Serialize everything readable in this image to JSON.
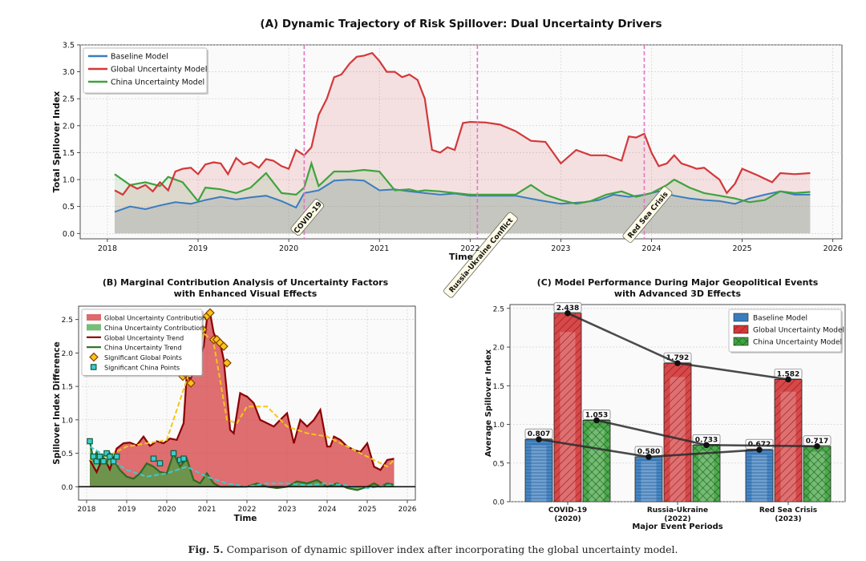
{
  "caption": {
    "label": "Fig. 5.",
    "text": "Comparison of dynamic spillover index after incorporating the global uncertainty model."
  },
  "colors": {
    "baseline": "#3a7dbf",
    "global": "#d3383a",
    "china": "#3fa33f",
    "event_line": "#e377c2",
    "gold": "#f5c518",
    "teal": "#3ecad1",
    "dark_red": "#8b0000",
    "dark_green": "#2e6b1f"
  },
  "chart_data": [
    {
      "id": "A",
      "type": "line",
      "title": "(A) Dynamic Trajectory of Risk Spillover: Dual Uncertainty Drivers",
      "xlabel": "Time",
      "ylabel": "Total Spillover Index",
      "xlim": [
        2017.7,
        2026.1
      ],
      "ylim": [
        -0.1,
        3.5
      ],
      "xticks": [
        2018,
        2019,
        2020,
        2021,
        2022,
        2023,
        2024,
        2025,
        2026
      ],
      "yticks": [
        0.0,
        0.5,
        1.0,
        1.5,
        2.0,
        2.5,
        3.0,
        3.5
      ],
      "grid": true,
      "legend_position": "top-left",
      "events": [
        {
          "x": 2020.17,
          "label": "COVID-19"
        },
        {
          "x": 2022.08,
          "label": "Russia-Ukraine Conflict"
        },
        {
          "x": 2023.92,
          "label": "Red Sea Crisis"
        }
      ],
      "series": [
        {
          "name": "Baseline Model",
          "color_key": "baseline",
          "x": [
            2018.08,
            2018.25,
            2018.42,
            2018.58,
            2018.75,
            2018.92,
            2019.08,
            2019.25,
            2019.42,
            2019.58,
            2019.75,
            2019.92,
            2020.08,
            2020.17,
            2020.33,
            2020.5,
            2020.67,
            2020.83,
            2021.0,
            2021.17,
            2021.33,
            2021.5,
            2021.67,
            2021.83,
            2022.0,
            2022.25,
            2022.5,
            2022.75,
            2023.0,
            2023.25,
            2023.42,
            2023.58,
            2023.75,
            2023.92,
            2024.08,
            2024.25,
            2024.42,
            2024.58,
            2024.75,
            2024.92,
            2025.08,
            2025.25,
            2025.42,
            2025.58,
            2025.75
          ],
          "y": [
            0.4,
            0.5,
            0.45,
            0.52,
            0.58,
            0.55,
            0.62,
            0.68,
            0.63,
            0.67,
            0.7,
            0.6,
            0.48,
            0.75,
            0.8,
            0.98,
            1.0,
            0.98,
            0.8,
            0.82,
            0.78,
            0.75,
            0.72,
            0.74,
            0.7,
            0.7,
            0.7,
            0.62,
            0.55,
            0.58,
            0.62,
            0.72,
            0.68,
            0.72,
            0.78,
            0.7,
            0.65,
            0.62,
            0.6,
            0.55,
            0.65,
            0.72,
            0.78,
            0.72,
            0.72
          ]
        },
        {
          "name": "Global Uncertainty Model",
          "color_key": "global",
          "x": [
            2018.08,
            2018.17,
            2018.25,
            2018.33,
            2018.42,
            2018.5,
            2018.58,
            2018.67,
            2018.75,
            2018.83,
            2018.92,
            2019.0,
            2019.08,
            2019.17,
            2019.25,
            2019.33,
            2019.42,
            2019.5,
            2019.58,
            2019.67,
            2019.75,
            2019.83,
            2019.92,
            2020.0,
            2020.08,
            2020.17,
            2020.25,
            2020.33,
            2020.42,
            2020.5,
            2020.58,
            2020.67,
            2020.75,
            2020.83,
            2020.92,
            2021.0,
            2021.08,
            2021.17,
            2021.25,
            2021.33,
            2021.42,
            2021.5,
            2021.58,
            2021.67,
            2021.75,
            2021.83,
            2021.92,
            2022.0,
            2022.17,
            2022.33,
            2022.5,
            2022.67,
            2022.83,
            2023.0,
            2023.17,
            2023.33,
            2023.5,
            2023.67,
            2023.75,
            2023.83,
            2023.92,
            2024.0,
            2024.08,
            2024.17,
            2024.25,
            2024.33,
            2024.42,
            2024.5,
            2024.58,
            2024.67,
            2024.75,
            2024.83,
            2024.92,
            2025.0,
            2025.17,
            2025.33,
            2025.42,
            2025.58,
            2025.75
          ],
          "y": [
            0.8,
            0.72,
            0.9,
            0.83,
            0.9,
            0.78,
            0.95,
            0.8,
            1.15,
            1.2,
            1.22,
            1.1,
            1.28,
            1.32,
            1.3,
            1.1,
            1.4,
            1.28,
            1.32,
            1.22,
            1.38,
            1.35,
            1.25,
            1.2,
            1.55,
            1.45,
            1.6,
            2.2,
            2.5,
            2.9,
            2.95,
            3.15,
            3.28,
            3.3,
            3.35,
            3.2,
            3.0,
            3.0,
            2.9,
            2.95,
            2.85,
            2.5,
            1.55,
            1.5,
            1.6,
            1.55,
            2.05,
            2.07,
            2.06,
            2.02,
            1.9,
            1.72,
            1.7,
            1.3,
            1.55,
            1.45,
            1.45,
            1.35,
            1.8,
            1.78,
            1.85,
            1.5,
            1.25,
            1.3,
            1.45,
            1.3,
            1.25,
            1.2,
            1.22,
            1.1,
            1.0,
            0.75,
            0.92,
            1.2,
            1.08,
            0.95,
            1.12,
            1.1,
            1.12
          ]
        },
        {
          "name": "China Uncertainty Model",
          "color_key": "china",
          "x": [
            2018.08,
            2018.25,
            2018.42,
            2018.58,
            2018.67,
            2018.83,
            2019.0,
            2019.08,
            2019.25,
            2019.42,
            2019.58,
            2019.75,
            2019.92,
            2020.08,
            2020.17,
            2020.25,
            2020.33,
            2020.5,
            2020.67,
            2020.83,
            2021.0,
            2021.17,
            2021.33,
            2021.42,
            2021.5,
            2021.67,
            2021.83,
            2022.0,
            2022.25,
            2022.5,
            2022.67,
            2022.83,
            2023.0,
            2023.17,
            2023.33,
            2023.5,
            2023.67,
            2023.83,
            2024.0,
            2024.17,
            2024.25,
            2024.42,
            2024.58,
            2024.75,
            2024.92,
            2025.08,
            2025.25,
            2025.42,
            2025.58,
            2025.75
          ],
          "y": [
            1.1,
            0.9,
            0.95,
            0.88,
            1.05,
            0.95,
            0.6,
            0.85,
            0.82,
            0.75,
            0.85,
            1.12,
            0.75,
            0.72,
            0.85,
            1.3,
            0.88,
            1.15,
            1.15,
            1.18,
            1.15,
            0.8,
            0.82,
            0.78,
            0.8,
            0.78,
            0.75,
            0.72,
            0.72,
            0.72,
            0.9,
            0.72,
            0.62,
            0.55,
            0.6,
            0.72,
            0.78,
            0.68,
            0.75,
            0.9,
            1.0,
            0.85,
            0.75,
            0.7,
            0.65,
            0.58,
            0.62,
            0.78,
            0.75,
            0.77
          ]
        }
      ]
    },
    {
      "id": "B",
      "type": "area",
      "title": "(B) Marginal Contribution Analysis of Uncertainty Factors",
      "subtitle": "with Enhanced Visual Effects",
      "xlabel": "Time",
      "ylabel": "Spillover Index Difference",
      "xlim": [
        2017.8,
        2026.2
      ],
      "ylim": [
        -0.2,
        2.7
      ],
      "xticks": [
        2018,
        2019,
        2020,
        2021,
        2022,
        2023,
        2024,
        2025,
        2026
      ],
      "yticks": [
        0.0,
        0.5,
        1.0,
        1.5,
        2.0,
        2.5
      ],
      "grid": true,
      "legend_position": "top-left",
      "legend": [
        "Global Uncertainty Contribution",
        "China Uncertainty Contribution",
        "Global Uncertainty Trend",
        "China Uncertainty Trend",
        "Significant Global Points",
        "Significant China Points"
      ],
      "series": [
        {
          "name": "Global Uncertainty Contribution",
          "color_key": "global",
          "x": [
            2018.08,
            2018.25,
            2018.42,
            2018.58,
            2018.75,
            2018.92,
            2019.08,
            2019.25,
            2019.42,
            2019.58,
            2019.75,
            2019.92,
            2020.08,
            2020.25,
            2020.42,
            2020.5,
            2020.58,
            2020.75,
            2020.92,
            2021.0,
            2021.08,
            2021.17,
            2021.25,
            2021.33,
            2021.42,
            2021.5,
            2021.58,
            2021.67,
            2021.83,
            2021.92,
            2022.0,
            2022.17,
            2022.33,
            2022.5,
            2022.67,
            2022.83,
            2023.0,
            2023.17,
            2023.33,
            2023.5,
            2023.67,
            2023.83,
            2024.0,
            2024.08,
            2024.17,
            2024.33,
            2024.5,
            2024.67,
            2024.83,
            2025.0,
            2025.17,
            2025.33,
            2025.5,
            2025.67
          ],
          "y": [
            0.4,
            0.22,
            0.45,
            0.26,
            0.57,
            0.65,
            0.66,
            0.62,
            0.75,
            0.61,
            0.68,
            0.65,
            0.72,
            0.7,
            0.95,
            1.7,
            1.6,
            1.8,
            2.1,
            2.5,
            2.6,
            2.3,
            2.2,
            2.15,
            1.9,
            1.4,
            0.85,
            0.8,
            1.4,
            1.37,
            1.35,
            1.25,
            1.0,
            0.95,
            0.9,
            1.0,
            1.1,
            0.65,
            1.0,
            0.9,
            1.0,
            1.15,
            0.6,
            0.6,
            0.75,
            0.7,
            0.6,
            0.55,
            0.52,
            0.65,
            0.3,
            0.25,
            0.4,
            0.42
          ]
        },
        {
          "name": "China Uncertainty Contribution",
          "color_key": "china",
          "x": [
            2018.08,
            2018.17,
            2018.25,
            2018.33,
            2018.42,
            2018.5,
            2018.58,
            2018.67,
            2018.83,
            2019.0,
            2019.17,
            2019.33,
            2019.5,
            2019.67,
            2019.83,
            2020.0,
            2020.17,
            2020.33,
            2020.5,
            2020.67,
            2020.83,
            2021.0,
            2021.17,
            2021.33,
            2021.5,
            2021.67,
            2021.83,
            2022.0,
            2022.25,
            2022.5,
            2022.75,
            2023.0,
            2023.25,
            2023.5,
            2023.75,
            2024.0,
            2024.25,
            2024.5,
            2024.75,
            2025.0,
            2025.17,
            2025.33,
            2025.5,
            2025.67
          ],
          "y": [
            0.68,
            0.4,
            0.52,
            0.38,
            0.45,
            0.35,
            0.5,
            0.4,
            0.25,
            0.15,
            0.12,
            0.2,
            0.35,
            0.3,
            0.22,
            0.2,
            0.5,
            0.3,
            0.42,
            0.1,
            0.05,
            0.2,
            0.05,
            0.0,
            0.0,
            0.0,
            0.0,
            0.0,
            0.05,
            0.0,
            -0.02,
            0.0,
            0.08,
            0.05,
            0.1,
            0.0,
            0.05,
            -0.02,
            -0.05,
            0.0,
            0.05,
            0.0,
            0.05,
            0.03
          ]
        }
      ],
      "trends": [
        {
          "name": "Global Uncertainty Trend",
          "color_key": "gold",
          "x": [
            2018.08,
            2018.5,
            2019.0,
            2019.5,
            2020.0,
            2020.5,
            2020.92,
            2021.17,
            2021.5,
            2021.75,
            2022.0,
            2022.5,
            2023.0,
            2023.5,
            2024.0,
            2024.5,
            2025.0,
            2025.5,
            2025.67
          ],
          "y": [
            0.4,
            0.45,
            0.6,
            0.65,
            0.7,
            1.6,
            2.3,
            2.15,
            1.0,
            0.95,
            1.2,
            1.2,
            0.9,
            0.8,
            0.75,
            0.6,
            0.45,
            0.3,
            0.4
          ]
        },
        {
          "name": "China Uncertainty Trend",
          "color_key": "teal",
          "x": [
            2018.08,
            2018.5,
            2019.0,
            2019.5,
            2020.0,
            2020.5,
            2021.0,
            2021.5,
            2022.0,
            2022.5,
            2023.0,
            2023.5,
            2024.0,
            2024.5,
            2025.0,
            2025.5,
            2025.67
          ],
          "y": [
            0.6,
            0.45,
            0.25,
            0.15,
            0.2,
            0.3,
            0.15,
            0.05,
            0.0,
            0.05,
            0.05,
            0.02,
            0.05,
            0.02,
            -0.02,
            0.02,
            0.03
          ]
        }
      ],
      "significant_global_points": {
        "x": [
          2020.4,
          2020.45,
          2020.6,
          2020.9,
          2021.0,
          2021.08,
          2021.17,
          2021.25,
          2021.33,
          2021.42,
          2021.5
        ],
        "y": [
          1.65,
          1.7,
          1.55,
          2.35,
          2.55,
          2.6,
          2.2,
          2.2,
          2.15,
          2.1,
          1.85
        ]
      },
      "significant_china_points": {
        "x": [
          2018.08,
          2018.17,
          2018.25,
          2018.33,
          2018.42,
          2018.5,
          2018.58,
          2018.67,
          2018.75,
          2019.67,
          2019.83,
          2020.17,
          2020.33,
          2020.42
        ],
        "y": [
          0.68,
          0.45,
          0.38,
          0.45,
          0.38,
          0.5,
          0.45,
          0.38,
          0.45,
          0.42,
          0.35,
          0.5,
          0.4,
          0.42
        ]
      }
    },
    {
      "id": "C",
      "type": "bar",
      "title": "(C) Model Performance During Major Geopolitical Events",
      "subtitle": "with Advanced 3D Effects",
      "xlabel": "Major Event Periods",
      "ylabel": "Average Spillover Index",
      "ylim": [
        0,
        2.55
      ],
      "yticks": [
        0.0,
        0.5,
        1.0,
        1.5,
        2.0,
        2.5
      ],
      "grid": true,
      "legend_position": "top-right",
      "categories": [
        [
          "COVID-19",
          "(2020)"
        ],
        [
          "Russia-Ukraine",
          "(2022)"
        ],
        [
          "Red Sea Crisis",
          "(2023)"
        ]
      ],
      "series": [
        {
          "name": "Baseline Model",
          "color_key": "baseline",
          "values": [
            0.807,
            0.58,
            0.672
          ],
          "labels": [
            "0.807",
            "0.580",
            "0.672"
          ]
        },
        {
          "name": "Global Uncertainty Model",
          "color_key": "global",
          "values": [
            2.438,
            1.792,
            1.582
          ],
          "labels": [
            "2.438",
            "1.792",
            "1.582"
          ]
        },
        {
          "name": "China Uncertainty Model",
          "color_key": "china",
          "values": [
            1.053,
            0.733,
            0.717
          ],
          "labels": [
            "1.053",
            "0.733",
            "0.717"
          ]
        }
      ]
    }
  ]
}
